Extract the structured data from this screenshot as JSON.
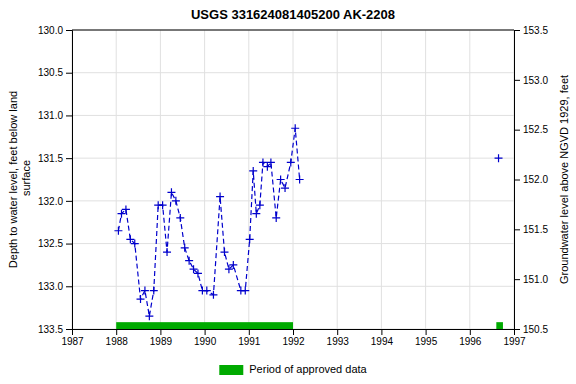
{
  "chart_data": {
    "type": "line",
    "title": "USGS 331624081405200 AK-2208",
    "ylabel": "Depth to water level, feet below land\n surface",
    "y2label": "Groundwater level above NGVD 1929, feet",
    "xlim": [
      1987,
      1997
    ],
    "xticks": [
      1987,
      1988,
      1989,
      1990,
      1991,
      1992,
      1993,
      1994,
      1995,
      1996,
      1997
    ],
    "ylim": [
      133.5,
      130.0
    ],
    "yticks": [
      {
        "value": 130.0,
        "label": "130.0"
      },
      130.5,
      {
        "value": 131.0,
        "label": "131.0"
      },
      131.5,
      {
        "value": 132.0,
        "label": "132.0"
      },
      132.5,
      {
        "value": 133.0,
        "label": "133.0"
      },
      133.5
    ],
    "y2lim": [
      150.5,
      153.5
    ],
    "y2ticks": [
      150.5,
      {
        "value": 151.0,
        "label": "151.0"
      },
      151.5,
      {
        "value": 152.0,
        "label": "152.0"
      },
      152.5,
      {
        "value": 153.0,
        "label": "153.0"
      },
      153.5
    ],
    "grid": true,
    "legend": "bottom",
    "series": [
      {
        "color": "#0000cc",
        "line_style": "dashed",
        "marker": "plus",
        "x": [
          1988.05,
          1988.12,
          1988.22,
          1988.32,
          1988.42,
          1988.55,
          1988.65,
          1988.75,
          1988.85,
          1988.95,
          1989.05,
          1989.15,
          1989.25,
          1989.35,
          1989.45,
          1989.55,
          1989.65,
          1989.75,
          1989.85,
          1989.95,
          1990.05,
          1990.2,
          1990.35,
          1990.45,
          1990.55,
          1990.65,
          1990.82,
          1990.92,
          1991.02,
          1991.1,
          1991.17,
          1991.25,
          1991.32,
          1991.42,
          1991.5,
          1991.62,
          1991.72,
          1991.82,
          1991.95,
          1992.05,
          1992.15
        ],
        "values": [
          132.35,
          132.15,
          132.1,
          132.45,
          132.5,
          133.15,
          133.05,
          133.35,
          133.05,
          132.05,
          132.05,
          132.6,
          131.9,
          132.0,
          132.2,
          132.55,
          132.7,
          132.8,
          132.85,
          133.05,
          133.05,
          133.1,
          131.95,
          132.6,
          132.8,
          132.75,
          133.05,
          133.05,
          132.45,
          131.65,
          132.15,
          132.05,
          131.55,
          131.6,
          131.55,
          132.2,
          131.75,
          131.85,
          131.55,
          131.15,
          131.75
        ]
      },
      {
        "color": "#0000cc",
        "line_style": "none",
        "marker": "plus",
        "x": [
          1996.65
        ],
        "values": [
          131.5
        ]
      }
    ],
    "approved_periods": {
      "name": "Period of approved data",
      "color": "#00aa00",
      "y": [
        133.5,
        133.42
      ],
      "x": [
        [
          1988.0,
          1992.0
        ],
        [
          1996.6,
          1996.75
        ]
      ]
    }
  }
}
